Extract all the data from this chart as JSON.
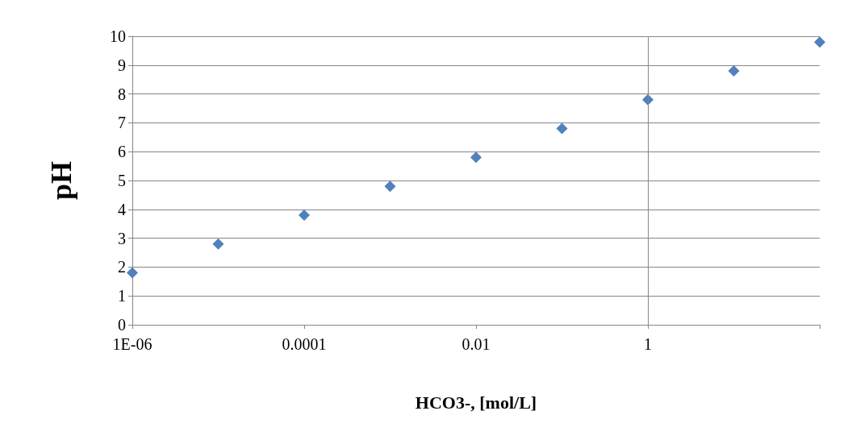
{
  "chart_data": {
    "type": "scatter",
    "xlabel": "HCO3-, [mol/L]",
    "ylabel": "pH",
    "x": [
      1e-06,
      1e-05,
      0.0001,
      0.001,
      0.01,
      0.1,
      1,
      10,
      100
    ],
    "series": [
      {
        "color": "#4f81bd",
        "values": [
          1.8,
          2.8,
          3.8,
          4.8,
          5.8,
          6.8,
          7.8,
          8.8,
          9.8
        ]
      }
    ],
    "log": "x",
    "xlim": [
      1e-06,
      100
    ],
    "xticks": [
      {
        "value": 1e-06,
        "label": "1E-06"
      },
      {
        "value": 0.0001,
        "label": "0.0001"
      },
      {
        "value": 0.01,
        "label": "0.01"
      },
      {
        "value": 1,
        "label": "1"
      },
      {
        "value": 100,
        "label": null
      }
    ],
    "ylim": [
      0,
      10
    ],
    "yticks": [
      0,
      1,
      2,
      3,
      4,
      5,
      6,
      7,
      8,
      9,
      10
    ],
    "ref_lines": [
      {
        "axis": "x",
        "value": 1,
        "color": "#868686"
      }
    ],
    "grid": "y",
    "marker": "diamond"
  }
}
